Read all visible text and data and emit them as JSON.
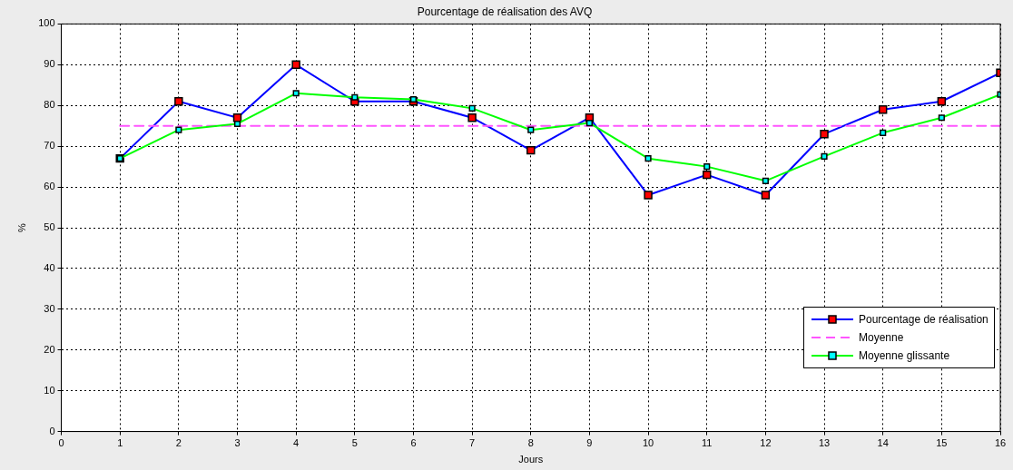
{
  "chart_data": {
    "type": "line",
    "title": "Pourcentage de réalisation des AVQ",
    "xlabel": "Jours",
    "ylabel": "%",
    "x": [
      1,
      2,
      3,
      4,
      5,
      6,
      7,
      8,
      9,
      10,
      11,
      12,
      13,
      14,
      15,
      16
    ],
    "series": [
      {
        "name": "Pourcentage de réalisation",
        "color": "#0000ff",
        "marker": "square",
        "colors": [
          "#ff0000",
          "#ff0000",
          "#ff0000",
          "#ff0000",
          "#ff0000",
          "#ff0000",
          "#ff0000",
          "#ff0000",
          "#ff0000",
          "#ff0000",
          "#ff0000",
          "#ff0000",
          "#ff0000",
          "#ff0000",
          "#ff0000",
          "#ff0000"
        ],
        "values": [
          67,
          81,
          77,
          90,
          81,
          81,
          77,
          69,
          77,
          58,
          63,
          58,
          73,
          79,
          81,
          88
        ]
      },
      {
        "name": "Moyenne",
        "color": "#ff55ff",
        "marker": "none",
        "line_style": "dashed",
        "values": [
          75,
          75,
          75,
          75,
          75,
          75,
          75,
          75,
          75,
          75,
          75,
          75,
          75,
          75,
          75,
          75
        ]
      },
      {
        "name": "Moyenne glissante",
        "color": "#00ff00",
        "marker": "square",
        "colors": [
          "#00ffff",
          "#00ffff",
          "#00ffff",
          "#00ffff",
          "#00ffff",
          "#00ffff",
          "#00ffff",
          "#00ffff",
          "#00ffff",
          "#00ffff",
          "#00ffff",
          "#00ffff",
          "#00ffff",
          "#00ffff",
          "#00ffff",
          "#00ffff"
        ],
        "values": [
          67,
          74,
          75.5,
          83,
          82,
          81.5,
          79.3,
          74,
          75.7,
          67,
          65,
          61.5,
          67.5,
          73.3,
          77,
          82.7
        ]
      }
    ],
    "xlim": [
      0,
      16
    ],
    "xticks": [
      0,
      1,
      2,
      3,
      4,
      5,
      6,
      7,
      8,
      9,
      10,
      11,
      12,
      13,
      14,
      15,
      16
    ],
    "ylim": [
      0,
      100
    ],
    "yticks": [
      0,
      10,
      20,
      30,
      40,
      50,
      60,
      70,
      80,
      90,
      100
    ],
    "grid": true,
    "legend": "bottom right"
  }
}
